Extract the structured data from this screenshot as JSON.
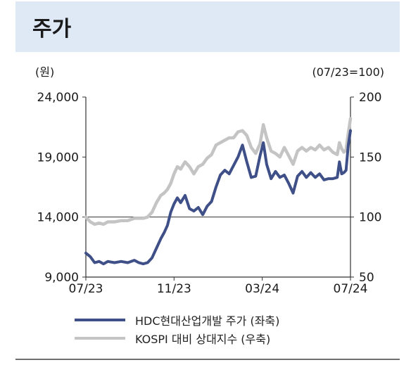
{
  "page": {
    "title": "주가"
  },
  "chart_data": {
    "type": "line",
    "left_unit": "(원)",
    "right_unit": "(07/23=100)",
    "ylim_left": [
      9000,
      24000
    ],
    "ylim_right": [
      50,
      200
    ],
    "left_ticks": [
      "24,000",
      "19,000",
      "14,000",
      "9,000"
    ],
    "left_tick_values": [
      24000,
      19000,
      14000,
      9000
    ],
    "right_ticks": [
      "200",
      "150",
      "100",
      "50"
    ],
    "right_tick_values": [
      200,
      150,
      100,
      50
    ],
    "x_ticks": [
      "07/23",
      "11/23",
      "03/24",
      "07/24"
    ],
    "x_tick_positions": [
      0,
      4,
      8,
      12
    ],
    "reference_line_right": 100,
    "series": [
      {
        "name": "HDC현대산업개발 주가 (좌축)",
        "axis": "left",
        "color": "#3f4f87",
        "x": [
          0,
          0.2,
          0.4,
          0.6,
          0.8,
          1.0,
          1.3,
          1.6,
          1.9,
          2.2,
          2.4,
          2.6,
          2.8,
          3.0,
          3.2,
          3.4,
          3.55,
          3.7,
          3.85,
          4.0,
          4.15,
          4.3,
          4.5,
          4.7,
          4.9,
          5.1,
          5.3,
          5.5,
          5.7,
          5.9,
          6.1,
          6.3,
          6.5,
          6.7,
          6.9,
          7.1,
          7.3,
          7.5,
          7.7,
          7.9,
          8.05,
          8.2,
          8.4,
          8.6,
          8.8,
          9.0,
          9.2,
          9.4,
          9.6,
          9.8,
          10.0,
          10.2,
          10.4,
          10.6,
          10.8,
          11.0,
          11.2,
          11.4,
          11.5,
          11.6,
          11.7,
          11.8,
          11.9,
          12.0
        ],
        "values": [
          11000,
          10700,
          10200,
          10300,
          10100,
          10300,
          10200,
          10300,
          10200,
          10400,
          10200,
          10100,
          10200,
          10600,
          11400,
          12200,
          12700,
          13300,
          14400,
          15100,
          15600,
          15200,
          15800,
          14700,
          14500,
          14800,
          14200,
          14900,
          15300,
          16500,
          17500,
          17900,
          17600,
          18300,
          19000,
          20000,
          18600,
          17300,
          17400,
          19100,
          20200,
          18400,
          17200,
          17800,
          17300,
          17500,
          16800,
          16000,
          17400,
          17800,
          17300,
          17700,
          17300,
          17600,
          17100,
          17200,
          17200,
          17300,
          18600,
          17600,
          17700,
          17900,
          20000,
          21200
        ]
      },
      {
        "name": "KOSPI 대비 상대지수 (우축)",
        "axis": "right",
        "color": "#c4c4c4",
        "x": [
          0,
          0.2,
          0.4,
          0.6,
          0.8,
          1.0,
          1.3,
          1.6,
          1.9,
          2.2,
          2.4,
          2.6,
          2.8,
          3.0,
          3.2,
          3.4,
          3.55,
          3.7,
          3.85,
          4.0,
          4.15,
          4.3,
          4.5,
          4.7,
          4.9,
          5.1,
          5.3,
          5.5,
          5.7,
          5.9,
          6.1,
          6.3,
          6.5,
          6.7,
          6.9,
          7.1,
          7.3,
          7.5,
          7.7,
          7.9,
          8.05,
          8.2,
          8.4,
          8.6,
          8.8,
          9.0,
          9.2,
          9.4,
          9.6,
          9.8,
          10.0,
          10.2,
          10.4,
          10.6,
          10.8,
          11.0,
          11.2,
          11.4,
          11.5,
          11.6,
          11.7,
          11.8,
          11.9,
          12.0
        ],
        "values": [
          100,
          96,
          94,
          95,
          94,
          96,
          96,
          97,
          97,
          99,
          99,
          99,
          100,
          104,
          112,
          118,
          120,
          123,
          128,
          136,
          142,
          140,
          146,
          142,
          136,
          142,
          144,
          149,
          152,
          160,
          162,
          164,
          166,
          166,
          171,
          172,
          168,
          158,
          153,
          161,
          177,
          166,
          155,
          153,
          150,
          158,
          151,
          144,
          155,
          158,
          155,
          158,
          156,
          160,
          156,
          158,
          154,
          152,
          162,
          157,
          154,
          156,
          170,
          182
        ]
      }
    ]
  }
}
